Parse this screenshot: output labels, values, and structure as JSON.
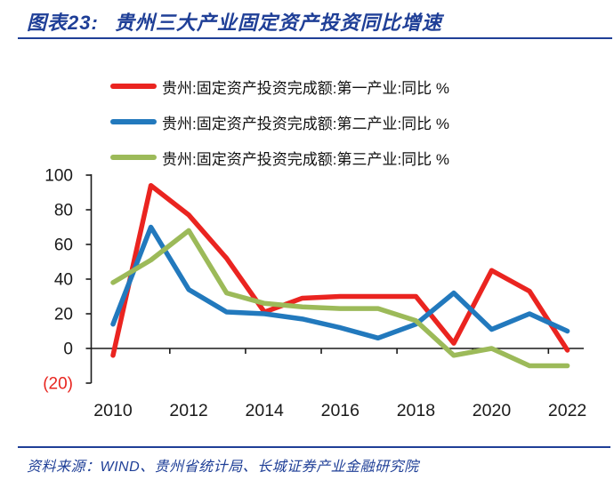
{
  "header": {
    "title_prefix": "图表23:",
    "title": "贵州三大产业固定资产投资同比增速"
  },
  "footer": {
    "source": "资料来源：WIND、贵州省统计局、长城证券产业金融研究院"
  },
  "colors": {
    "accent_blue": "#1F3F97",
    "axis_black": "#1A1A1A",
    "negative_red": "#E8251F"
  },
  "chart_data": {
    "type": "line",
    "title": "贵州三大产业固定资产投资同比增速",
    "categories": [
      2010,
      2011,
      2012,
      2013,
      2014,
      2015,
      2016,
      2017,
      2018,
      2019,
      2020,
      2021,
      2022
    ],
    "series": [
      {
        "name": "贵州:固定资产投资完成额:第一产业:同比 %",
        "color": "#EA2420",
        "values": [
          -4,
          94,
          77,
          52,
          21,
          29,
          30,
          30,
          30,
          3,
          45,
          33,
          -1
        ]
      },
      {
        "name": "贵州:固定资产投资完成额:第二产业:同比 %",
        "color": "#2279BD",
        "values": [
          14,
          70,
          34,
          21,
          20,
          17,
          12,
          6,
          14,
          32,
          11,
          20,
          10
        ]
      },
      {
        "name": "贵州:固定资产投资完成额:第三产业:同比 %",
        "color": "#9CBA59",
        "values": [
          38,
          51,
          68,
          32,
          26,
          24,
          23,
          23,
          16,
          -4,
          0,
          -10,
          -10
        ]
      }
    ],
    "ylim": [
      -20,
      100
    ],
    "yticks": [
      100,
      80,
      60,
      40,
      20,
      0,
      -20
    ],
    "ytick_labels": [
      "100",
      "80",
      "60",
      "40",
      "20",
      "0",
      "(20)"
    ],
    "xtick_labels": [
      "2010",
      "2012",
      "2014",
      "2016",
      "2018",
      "2020",
      "2022"
    ],
    "grid": false,
    "legend_position": "top"
  }
}
